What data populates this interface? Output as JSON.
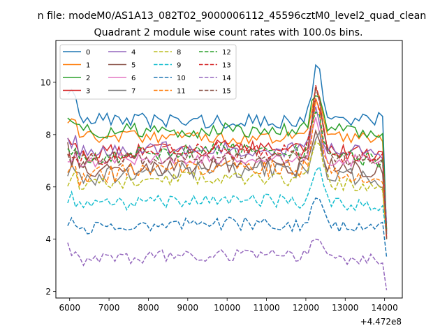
{
  "chart_data": {
    "type": "line",
    "suptitle": "n file: modeM0/AS1A13_082T02_9000006112_45596cztM0_level2_quad_clean",
    "title": "Quadrant 2 module wise count rates with 100.0s bins.",
    "xlabel": "",
    "ylabel": "",
    "x_offset_label": "+4.472e8",
    "xlim": [
      5650,
      14450
    ],
    "ylim": [
      1.75,
      11.6
    ],
    "xticks": [
      6000,
      7000,
      8000,
      9000,
      10000,
      11000,
      12000,
      13000,
      14000
    ],
    "yticks": [
      2,
      4,
      6,
      8,
      10
    ],
    "legend_position": "top-left",
    "grid": false,
    "x_start": 5950,
    "x_step": 100,
    "series": [
      {
        "name": "0",
        "color": "#1f77b4",
        "style": "solid",
        "shape": "ctr",
        "base": 8.55,
        "trend": -0.05,
        "noise": 0.3,
        "peak": 2.3,
        "drop": 4.4,
        "early": 1.5
      },
      {
        "name": "1",
        "color": "#ff7f0e",
        "style": "solid",
        "shape": "ctr",
        "base": 7.95,
        "trend": -0.05,
        "noise": 0.25,
        "peak": 1.8,
        "drop": 3.8,
        "early": 1.0
      },
      {
        "name": "2",
        "color": "#2ca02c",
        "style": "solid",
        "shape": "ctr",
        "base": 8.1,
        "trend": 0.05,
        "noise": 0.3,
        "peak": 1.6,
        "drop": 3.9,
        "early": 0.8
      },
      {
        "name": "3",
        "color": "#d62728",
        "style": "solid",
        "shape": "ctr",
        "base": 7.2,
        "trend": 0.3,
        "noise": 0.3,
        "peak": 2.0,
        "drop": 2.8,
        "early": 1.2
      },
      {
        "name": "4",
        "color": "#9467bd",
        "style": "solid",
        "shape": "ctr",
        "base": 7.35,
        "trend": 0.1,
        "noise": 0.3,
        "peak": 1.4,
        "drop": 3.0,
        "early": 0.7
      },
      {
        "name": "5",
        "color": "#8c564b",
        "style": "solid",
        "shape": "ctr",
        "base": 6.6,
        "trend": 0.25,
        "noise": 0.35,
        "peak": 1.5,
        "drop": 2.4,
        "early": 1.0
      },
      {
        "name": "6",
        "color": "#e377c2",
        "style": "solid",
        "shape": "ctr",
        "base": 6.95,
        "trend": 0.15,
        "noise": 0.25,
        "peak": 1.5,
        "drop": 2.6,
        "early": 0.6
      },
      {
        "name": "7",
        "color": "#7f7f7f",
        "style": "solid",
        "shape": "ctr",
        "base": 6.3,
        "trend": 0.4,
        "noise": 0.35,
        "peak": 1.5,
        "drop": 2.2,
        "early": 0.6
      },
      {
        "name": "8",
        "color": "#bcbd22",
        "style": "dashed",
        "shape": "ctr",
        "base": 5.95,
        "trend": 0.4,
        "noise": 0.25,
        "peak": 1.5,
        "drop": 1.8,
        "early": 0.6
      },
      {
        "name": "9",
        "color": "#17becf",
        "style": "dashed",
        "shape": "ctr",
        "base": 5.2,
        "trend": 0.3,
        "noise": 0.25,
        "peak": 1.5,
        "drop": 1.2,
        "early": 0.6
      },
      {
        "name": "10",
        "color": "#1f77b4",
        "style": "dashed",
        "shape": "ctr",
        "base": 4.4,
        "trend": 0.2,
        "noise": 0.25,
        "peak": 1.1,
        "drop": 1.0,
        "early": 0.5
      },
      {
        "name": "11",
        "color": "#ff7f0e",
        "style": "dashed",
        "shape": "ctr",
        "base": 6.3,
        "trend": 0.5,
        "noise": 0.35,
        "peak": 2.6,
        "drop": 2.5,
        "early": 0.8
      },
      {
        "name": "12",
        "color": "#2ca02c",
        "style": "dashed",
        "shape": "ctr",
        "base": 7.0,
        "trend": 0.4,
        "noise": 0.3,
        "peak": 1.8,
        "drop": 2.7,
        "early": 0.6
      },
      {
        "name": "13",
        "color": "#d62728",
        "style": "dashed",
        "shape": "ctr",
        "base": 7.0,
        "trend": 0.4,
        "noise": 0.3,
        "peak": 2.6,
        "drop": 2.7,
        "early": 0.6
      },
      {
        "name": "14",
        "color": "#9467bd",
        "style": "dashed",
        "shape": "ctr",
        "base": 3.2,
        "trend": 0.2,
        "noise": 0.25,
        "peak": 0.9,
        "drop": 1.2,
        "early": 0.9
      },
      {
        "name": "15",
        "color": "#8c564b",
        "style": "dashed",
        "shape": "ctr",
        "base": 6.9,
        "trend": 0.3,
        "noise": 0.3,
        "peak": 2.8,
        "drop": 2.7,
        "early": 0.6
      }
    ]
  }
}
